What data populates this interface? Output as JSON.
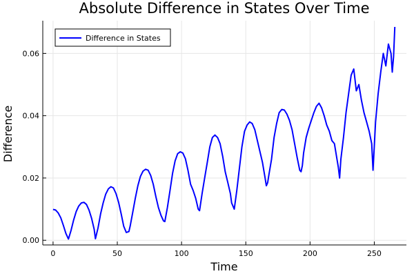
{
  "chart_data": {
    "type": "line",
    "title": "Absolute Difference in States Over Time",
    "xlabel": "Time",
    "ylabel": "Difference",
    "xlim": [
      -8,
      275
    ],
    "ylim": [
      -0.0015,
      0.0705
    ],
    "x_ticks": [
      {
        "value": 0,
        "label": "0"
      },
      {
        "value": 50,
        "label": "50"
      },
      {
        "value": 100,
        "label": "100"
      },
      {
        "value": 150,
        "label": "150"
      },
      {
        "value": 200,
        "label": "200"
      },
      {
        "value": 250,
        "label": "250"
      }
    ],
    "y_ticks": [
      {
        "value": 0.0,
        "label": "0.00"
      },
      {
        "value": 0.02,
        "label": "0.02"
      },
      {
        "value": 0.04,
        "label": "0.04"
      },
      {
        "value": 0.06,
        "label": "0.06"
      }
    ],
    "grid": true,
    "legend_position": "top-left",
    "series": [
      {
        "name": "Difference in States",
        "color": "#0000ff",
        "x": [
          0,
          2,
          4,
          6,
          8,
          10,
          12,
          14,
          16,
          18,
          20,
          22,
          24,
          26,
          28,
          30,
          32,
          33,
          35,
          37,
          39,
          41,
          43,
          45,
          47,
          49,
          51,
          53,
          55,
          57,
          59,
          60,
          62,
          64,
          66,
          68,
          70,
          72,
          74,
          76,
          78,
          80,
          82,
          84,
          86,
          87,
          89,
          91,
          93,
          95,
          97,
          99,
          101,
          103,
          105,
          107,
          109,
          111,
          113,
          114,
          116,
          118,
          120,
          122,
          124,
          126,
          128,
          130,
          132,
          134,
          136,
          138,
          139,
          140,
          141,
          143,
          145,
          147,
          149,
          151,
          153,
          155,
          157,
          159,
          161,
          163,
          165,
          166,
          167,
          168,
          170,
          172,
          174,
          176,
          178,
          180,
          182,
          184,
          186,
          188,
          190,
          192,
          193,
          194,
          195,
          197,
          199,
          201,
          203,
          205,
          207,
          209,
          211,
          213,
          215,
          217,
          219,
          221,
          222,
          223,
          224,
          226,
          228,
          230,
          232,
          234,
          236,
          238,
          240,
          242,
          244,
          246,
          248,
          249,
          250,
          251,
          253,
          255,
          257,
          259,
          261,
          263,
          264,
          265,
          266
        ],
        "values": [
          0.0099,
          0.0097,
          0.0088,
          0.0072,
          0.0048,
          0.0022,
          0.0004,
          0.0032,
          0.0065,
          0.0092,
          0.011,
          0.012,
          0.0122,
          0.0115,
          0.0097,
          0.007,
          0.0035,
          0.0005,
          0.004,
          0.0085,
          0.012,
          0.0148,
          0.0165,
          0.0172,
          0.0168,
          0.015,
          0.0122,
          0.0085,
          0.0045,
          0.0025,
          0.0028,
          0.0045,
          0.009,
          0.0135,
          0.0175,
          0.0205,
          0.0222,
          0.0228,
          0.0225,
          0.0208,
          0.018,
          0.014,
          0.0105,
          0.008,
          0.0062,
          0.006,
          0.0105,
          0.016,
          0.0215,
          0.0255,
          0.0278,
          0.0284,
          0.028,
          0.0262,
          0.0225,
          0.018,
          0.016,
          0.0135,
          0.01,
          0.0095,
          0.015,
          0.02,
          0.025,
          0.03,
          0.033,
          0.0338,
          0.033,
          0.031,
          0.027,
          0.022,
          0.0185,
          0.015,
          0.012,
          0.011,
          0.01,
          0.016,
          0.023,
          0.03,
          0.035,
          0.037,
          0.038,
          0.0375,
          0.0355,
          0.032,
          0.0285,
          0.025,
          0.02,
          0.0175,
          0.0185,
          0.021,
          0.026,
          0.033,
          0.0375,
          0.041,
          0.042,
          0.0418,
          0.0405,
          0.0385,
          0.0355,
          0.031,
          0.0265,
          0.0225,
          0.022,
          0.024,
          0.028,
          0.033,
          0.036,
          0.0385,
          0.041,
          0.043,
          0.044,
          0.0425,
          0.04,
          0.037,
          0.035,
          0.032,
          0.031,
          0.026,
          0.0235,
          0.02,
          0.026,
          0.033,
          0.041,
          0.047,
          0.053,
          0.055,
          0.048,
          0.05,
          0.045,
          0.041,
          0.038,
          0.035,
          0.031,
          0.0225,
          0.03,
          0.038,
          0.047,
          0.054,
          0.06,
          0.056,
          0.063,
          0.06,
          0.054,
          0.059,
          0.0685
        ]
      }
    ]
  }
}
